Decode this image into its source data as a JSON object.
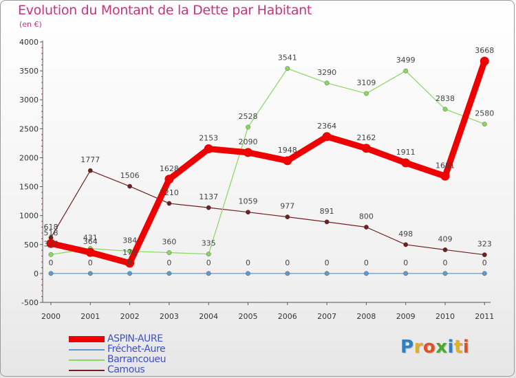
{
  "title": "Evolution du Montant de la Dette par Habitant",
  "subtitle": "(en €)",
  "logo": {
    "text": "Proxiti",
    "letters": [
      {
        "ch": "P",
        "color": "#2f7fc7"
      },
      {
        "ch": "r",
        "color": "#e0b020"
      },
      {
        "ch": "o",
        "color": "#e05020"
      },
      {
        "ch": "x",
        "color": "#4aa82a"
      },
      {
        "ch": "i",
        "color": "#2f7fc7"
      },
      {
        "ch": "t",
        "color": "#e0b020"
      },
      {
        "ch": "i",
        "color": "#e05020"
      }
    ]
  },
  "chart_data": {
    "type": "line",
    "x": [
      "2000",
      "2001",
      "2002",
      "2003",
      "2004",
      "2005",
      "2006",
      "2007",
      "2008",
      "2009",
      "2010",
      "2011"
    ],
    "ylim": [
      -500,
      4000
    ],
    "yticks": [
      "-500",
      "0",
      "500",
      "1000",
      "1500",
      "2000",
      "2500",
      "3000",
      "3500",
      "4000"
    ],
    "grid": false,
    "legend_position": "bottom-left",
    "series": [
      {
        "name": "Camous",
        "color": "#6e2020",
        "width": "thin",
        "values": [
          618,
          1777,
          1506,
          1210,
          1137,
          1059,
          977,
          891,
          800,
          498,
          409,
          323
        ],
        "labels": [
          "618",
          "1777",
          "1506",
          "1210",
          "1137",
          "1059",
          "977",
          "891",
          "800",
          "498",
          "409",
          "323"
        ]
      },
      {
        "name": "Barrancoueu",
        "color": "#88d860",
        "width": "thin",
        "values": [
          327,
          431,
          384,
          360,
          335,
          2528,
          3541,
          3290,
          3109,
          3499,
          2838,
          2580
        ],
        "labels": [
          "327",
          "431",
          "",
          "360",
          "335",
          "2528",
          "3541",
          "3290",
          "3109",
          "3499",
          "2838",
          "2580"
        ]
      },
      {
        "name": "Fréchet-Aure",
        "color": "#5b9bd5",
        "width": "thin",
        "values": [
          0,
          0,
          0,
          0,
          0,
          0,
          0,
          0,
          0,
          0,
          0,
          0
        ],
        "labels": [
          "0",
          "0",
          "0",
          "0",
          "0",
          "0",
          "0",
          "0",
          "0",
          "0",
          "0",
          "0"
        ]
      },
      {
        "name": "ASPIN-AURE",
        "color": "#ee0000",
        "width": "thick",
        "values": [
          518,
          364,
          178,
          1628,
          2153,
          2090,
          1948,
          2364,
          2162,
          1911,
          1681,
          3668
        ],
        "labels": [
          "518",
          "364",
          "178",
          "1628",
          "2153",
          "2090",
          "1948",
          "2364",
          "2162",
          "1911",
          "1681",
          "3668"
        ]
      }
    ],
    "extra_labels": [
      {
        "series": "Barrancoueu",
        "index": 2,
        "text": "384"
      }
    ]
  },
  "legend": [
    {
      "name": "ASPIN-AURE",
      "color": "#ee0000",
      "thickness": "thick"
    },
    {
      "name": "Fréchet-Aure",
      "color": "#5b9bd5",
      "thickness": "thin"
    },
    {
      "name": "Barrancoueu",
      "color": "#88d860",
      "thickness": "thin"
    },
    {
      "name": "Camous",
      "color": "#6e2020",
      "thickness": "thin"
    }
  ]
}
